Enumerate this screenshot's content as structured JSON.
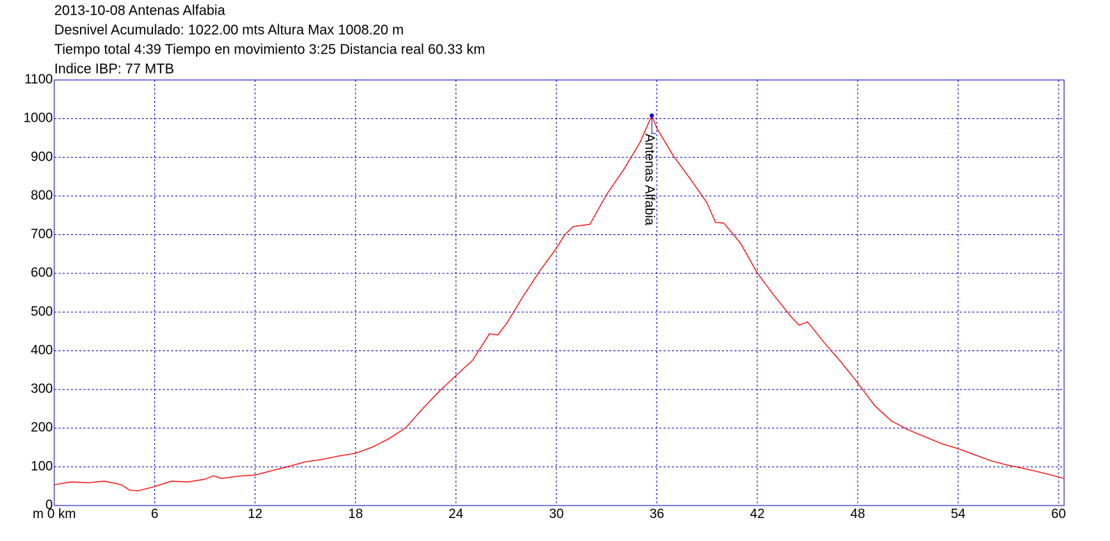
{
  "chart_data": {
    "type": "line",
    "title": "2013-10-08 Antenas Alfabia",
    "subtitles": [
      "Desnivel Acumulado: 1022.00 mts  Altura Max 1008.20 m",
      "Tiempo total 4:39 Tiempo en movimiento 3:25 Distancia real 60.33 km",
      "Indice IBP: 77 MTB"
    ],
    "x": [
      0,
      1,
      2,
      3,
      4,
      4.5,
      5,
      6,
      7,
      8,
      9,
      9.5,
      10,
      11,
      12,
      13,
      14,
      15,
      16,
      17,
      18,
      19,
      20,
      21,
      22,
      23,
      24,
      25,
      26,
      26.5,
      27,
      28,
      29,
      30,
      30.5,
      31,
      32,
      33,
      34,
      35,
      35.7,
      36,
      37,
      38,
      39,
      39.5,
      40,
      41,
      42,
      43,
      44,
      44.5,
      45,
      46,
      47,
      48,
      49,
      50,
      51,
      52,
      53,
      54,
      55,
      56,
      57,
      58,
      59,
      60,
      60.33
    ],
    "series": [
      {
        "name": "Altura",
        "color": "#ff0000",
        "values": [
          54,
          61,
          59,
          63,
          54,
          40,
          38,
          49,
          63,
          61,
          68,
          77,
          70,
          76,
          79,
          90,
          101,
          113,
          119,
          128,
          135,
          151,
          173,
          201,
          250,
          295,
          336,
          376,
          444,
          441,
          469,
          540,
          606,
          665,
          700,
          721,
          727,
          804,
          867,
          939,
          1008.2,
          975,
          903,
          844,
          782,
          732,
          730,
          678,
          601,
          543,
          489,
          466,
          475,
          421,
          371,
          317,
          259,
          219,
          196,
          178,
          160,
          147,
          131,
          115,
          104,
          95,
          85,
          74,
          70
        ]
      }
    ],
    "xlim": [
      0,
      60.33
    ],
    "ylim": [
      0,
      1100
    ],
    "xticks": [
      {
        "value": 0,
        "label": "m 0 km"
      },
      6,
      12,
      18,
      24,
      30,
      36,
      42,
      48,
      54,
      60
    ],
    "yticks": [
      0,
      100,
      200,
      300,
      400,
      500,
      600,
      700,
      800,
      900,
      1000,
      1100
    ],
    "grid": true,
    "grid_color": "#0000cc",
    "annotations": [
      {
        "label": "Antenas Alfabia",
        "x": 35.7,
        "y": 1008.2,
        "color": "#0000cc"
      }
    ]
  }
}
